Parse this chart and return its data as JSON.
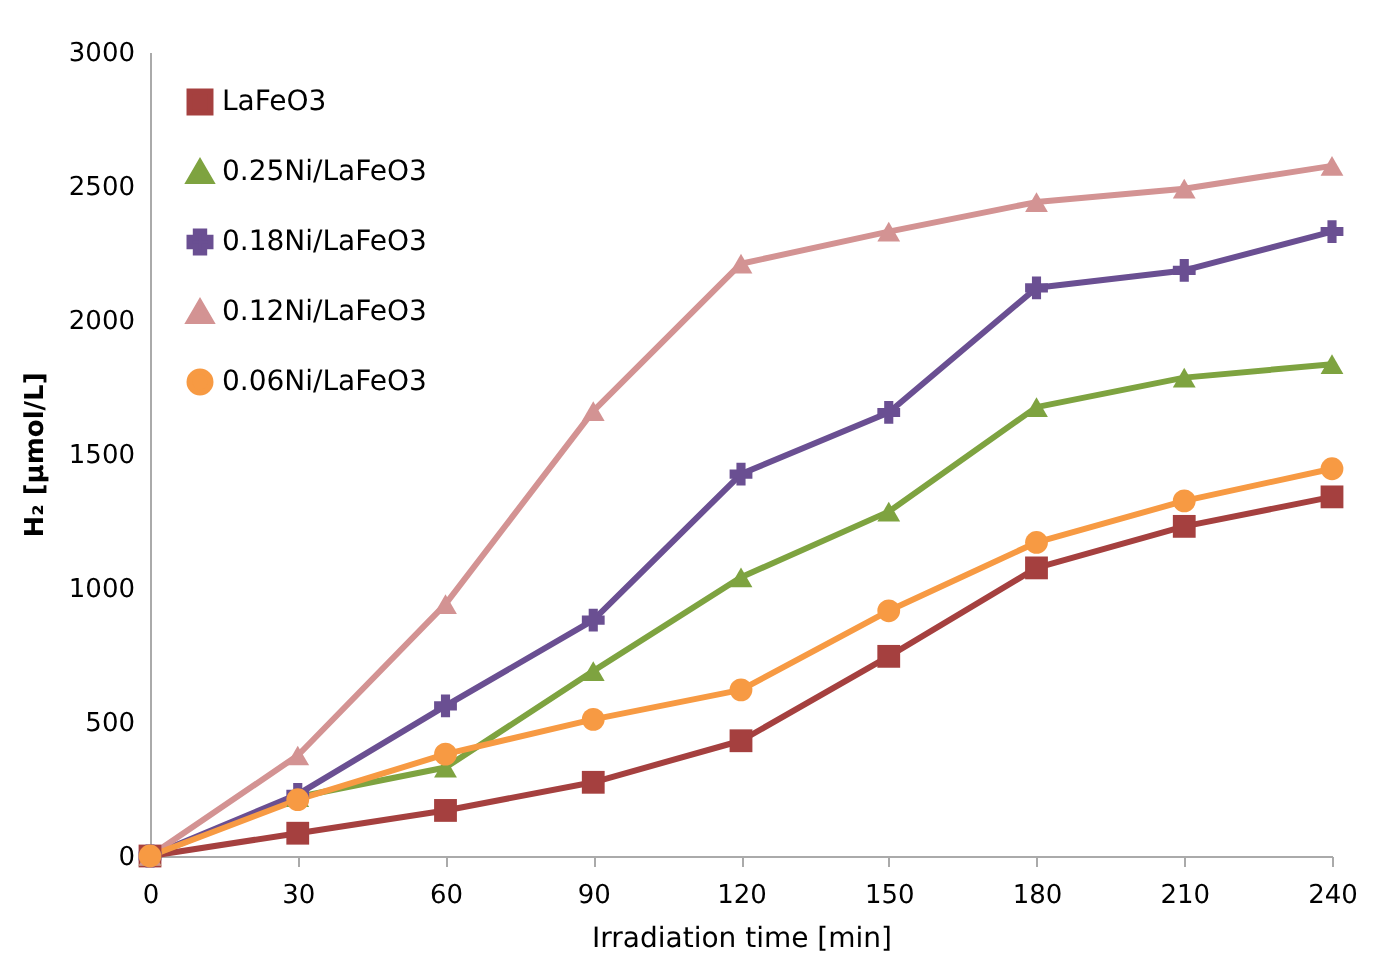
{
  "chart_data": {
    "type": "line",
    "xlabel": "Irradiation time [min]",
    "ylabel": "H₂ [μmol/L]",
    "x": [
      0,
      30,
      60,
      90,
      120,
      150,
      180,
      210,
      240
    ],
    "xlim": [
      0,
      240
    ],
    "xticks": [
      0,
      30,
      60,
      90,
      120,
      150,
      180,
      210,
      240
    ],
    "ylim": [
      0,
      3000
    ],
    "yticks": [
      0,
      500,
      1000,
      1500,
      2000,
      2500,
      3000
    ],
    "grid": false,
    "legend": "top left",
    "series": [
      {
        "name": "LaFeO3",
        "color": "#a5403f",
        "marker": "square",
        "values": [
          0,
          85,
          170,
          275,
          430,
          745,
          1075,
          1230,
          1340
        ]
      },
      {
        "name": "0.25Ni/LaFeO3",
        "color": "#7ea340",
        "marker": "triangle",
        "values": [
          0,
          220,
          330,
          690,
          1040,
          1285,
          1675,
          1785,
          1835
        ]
      },
      {
        "name": "0.18Ni/LaFeO3",
        "color": "#6a4f92",
        "marker": "cross",
        "values": [
          0,
          230,
          560,
          880,
          1425,
          1655,
          2120,
          2185,
          2330
        ]
      },
      {
        "name": "0.12Ni/LaFeO3",
        "color": "#d39393",
        "marker": "triangle",
        "values": [
          0,
          375,
          940,
          1660,
          2210,
          2330,
          2440,
          2490,
          2575
        ]
      },
      {
        "name": "0.06Ni/LaFeO3",
        "color": "#f79a43",
        "marker": "circle",
        "values": [
          0,
          210,
          380,
          510,
          620,
          915,
          1170,
          1325,
          1445
        ]
      }
    ]
  }
}
